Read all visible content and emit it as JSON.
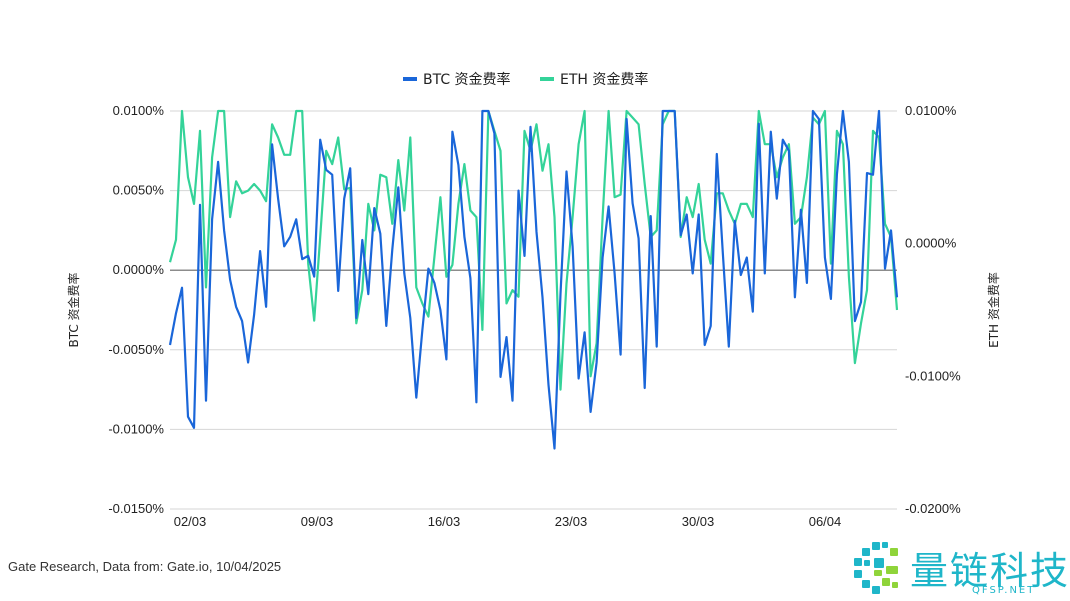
{
  "chart_data": {
    "type": "line",
    "legend_position": "top-center",
    "grid": true,
    "x_tick_labels": [
      "02/03",
      "09/03",
      "16/03",
      "23/03",
      "30/03",
      "06/04"
    ],
    "y_left": {
      "label": "BTC 资金费率",
      "range": [
        -0.015,
        0.01
      ],
      "tick_labels": [
        "0.0100%",
        "0.0050%",
        "0.0000%",
        "-0.0050%",
        "-0.0100%",
        "-0.0150%"
      ],
      "tick_values": [
        0.01,
        0.005,
        0,
        -0.005,
        -0.01,
        -0.015
      ]
    },
    "y_right": {
      "label": "ETH 资金费率",
      "range": [
        -0.02,
        0.01
      ],
      "tick_labels": [
        "0.0100%",
        "0.0000%",
        "-0.0100%",
        "-0.0200%"
      ],
      "tick_values": [
        0.01,
        0,
        -0.01,
        -0.02
      ]
    },
    "series": [
      {
        "name": "BTC 资金费率",
        "axis": "left",
        "color": "#1a66d9",
        "values": [
          -0.0047,
          -0.0027,
          -0.0011,
          -0.0092,
          -0.0099,
          0.0041,
          -0.0082,
          0.0032,
          0.0068,
          0.0025,
          -0.0006,
          -0.0023,
          -0.0032,
          -0.0058,
          -0.0028,
          0.0012,
          -0.0023,
          0.0079,
          0.0045,
          0.0015,
          0.0021,
          0.0032,
          0.0007,
          0.0009,
          -0.0004,
          0.0082,
          0.0063,
          0.006,
          -0.0013,
          0.0045,
          0.0064,
          -0.003,
          0.0019,
          -0.0015,
          0.0039,
          0.0023,
          -0.0035,
          0.0013,
          0.0052,
          -0.0002,
          -0.003,
          -0.008,
          -0.0038,
          0.0001,
          -0.0008,
          -0.0025,
          -0.0056,
          0.0087,
          0.0066,
          0.0021,
          -0.0005,
          -0.0083,
          0.01,
          0.01,
          0.0086,
          -0.0067,
          -0.0042,
          -0.0082,
          0.005,
          0.0009,
          0.009,
          0.0024,
          -0.0017,
          -0.0072,
          -0.0112,
          -0.0015,
          0.0062,
          0.0015,
          -0.0068,
          -0.0039,
          -0.0089,
          -0.0058,
          0.0008,
          0.004,
          -0.0002,
          -0.0053,
          0.0095,
          0.0042,
          0.002,
          -0.0074,
          0.0034,
          -0.0048,
          0.01,
          0.01,
          0.01,
          0.0022,
          0.0035,
          -0.0002,
          0.0035,
          -0.0047,
          -0.0035,
          0.0073,
          0.0011,
          -0.0048,
          0.0031,
          -0.0003,
          0.0008,
          -0.0026,
          0.0092,
          -0.0002,
          0.0087,
          0.0045,
          0.0082,
          0.0075,
          -0.0017,
          0.0038,
          -0.0008,
          0.01,
          0.0095,
          0.0008,
          -0.0018,
          0.006,
          0.01,
          0.0068,
          -0.0032,
          -0.002,
          0.0061,
          0.006,
          0.01,
          0.0001,
          0.0025,
          -0.0017
        ]
      },
      {
        "name": "ETH 资金费率",
        "axis": "right",
        "color": "#34d399",
        "values": [
          -0.0014,
          0.0003,
          0.01,
          0.005,
          0.003,
          0.0085,
          -0.0033,
          0.0065,
          0.01,
          0.01,
          0.002,
          0.0047,
          0.0038,
          0.004,
          0.0045,
          0.004,
          0.0032,
          0.009,
          0.008,
          0.0067,
          0.0067,
          0.01,
          0.01,
          -0.0015,
          -0.0058,
          0.0005,
          0.007,
          0.006,
          0.008,
          0.0041,
          0.0042,
          -0.006,
          -0.0035,
          0.003,
          0.001,
          0.0052,
          0.005,
          0.0015,
          0.0063,
          0.0025,
          0.008,
          -0.0033,
          -0.0045,
          -0.0055,
          -0.001,
          0.0035,
          -0.0025,
          -0.0016,
          0.003,
          0.006,
          0.0025,
          0.002,
          -0.0065,
          0.01,
          0.0085,
          0.007,
          -0.0045,
          -0.0035,
          -0.004,
          0.0085,
          0.007,
          0.009,
          0.0055,
          0.0075,
          0.002,
          -0.011,
          -0.003,
          0.002,
          0.0075,
          0.01,
          -0.01,
          -0.0075,
          0.002,
          0.01,
          0.0035,
          0.0037,
          0.01,
          0.0095,
          0.009,
          0.0045,
          0.0005,
          0.001,
          0.009,
          0.01,
          0.01,
          0.0005,
          0.0035,
          0.002,
          0.0045,
          0.0003,
          -0.0015,
          0.0038,
          0.0038,
          0.0025,
          0.0015,
          0.003,
          0.003,
          0.002,
          0.01,
          0.0075,
          0.0075,
          0.005,
          0.0065,
          0.0075,
          0.0015,
          0.002,
          0.005,
          0.0095,
          0.009,
          0.01,
          -0.0015,
          0.0085,
          0.0075,
          -0.0025,
          -0.009,
          -0.006,
          -0.0035,
          0.0085,
          0.008,
          0.0015,
          0.0005,
          -0.005
        ]
      }
    ]
  },
  "footer": {
    "source": "Gate Research, Data from: Gate.io, 10/04/2025"
  },
  "watermark": {
    "name": "量链科技",
    "url": "QFSP.NET",
    "colors": [
      "#1fb6c9",
      "#8fd43a"
    ]
  }
}
